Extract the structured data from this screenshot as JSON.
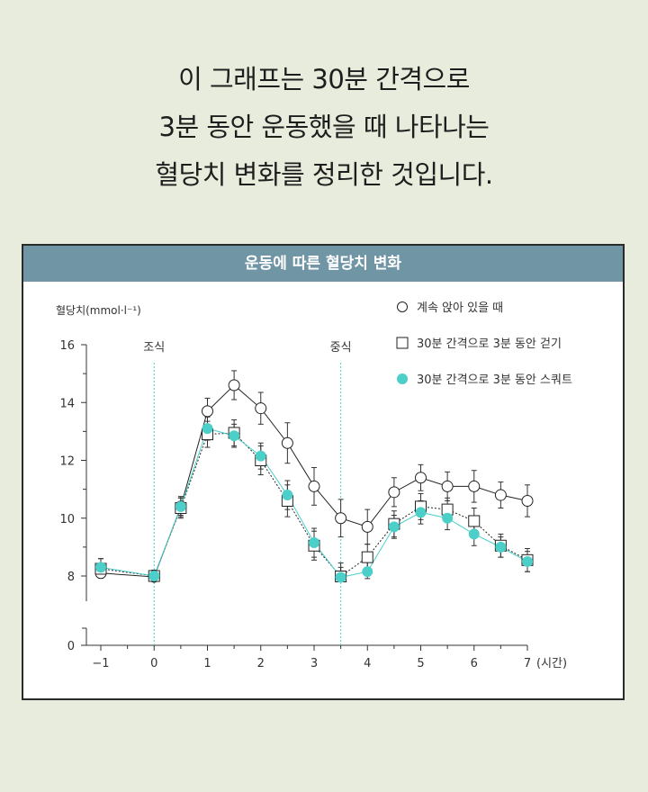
{
  "headline": {
    "line1": "이 그래프는 30분 간격으로",
    "line2": "3분 동안 운동했을 때 나타나는",
    "line3": "혈당치 변화를 정리한 것입니다."
  },
  "card": {
    "title": "운동에 따른 혈당치 변화"
  },
  "chart_data": {
    "type": "line",
    "title": "운동에 따른 혈당치 변화",
    "ylabel": "혈당치(mmol·l⁻¹)",
    "xlabel": "(시간)",
    "ylim": [
      0,
      16
    ],
    "xlim": [
      -1,
      7
    ],
    "y_ticks": [
      "0",
      "8",
      "10",
      "12",
      "14",
      "16"
    ],
    "x_ticks": [
      "−1",
      "0",
      "1",
      "2",
      "3",
      "4",
      "5",
      "6",
      "7"
    ],
    "axis_break": true,
    "annotations": [
      {
        "label": "조식",
        "x": 0
      },
      {
        "label": "중식",
        "x": 3.5
      }
    ],
    "x": [
      -1,
      0,
      0.5,
      1,
      1.5,
      2,
      2.5,
      3,
      3.5,
      4,
      4.5,
      5,
      5.5,
      6,
      6.5,
      7
    ],
    "series": [
      {
        "name": "계속 앉아 있을 때",
        "marker": "circle-open",
        "color": "#222222",
        "line": "solid",
        "values": [
          8.1,
          7.9,
          10.4,
          13.7,
          14.6,
          13.8,
          12.6,
          11.1,
          10.0,
          9.7,
          10.9,
          11.4,
          11.1,
          11.1,
          10.8,
          10.6
        ],
        "errors": [
          0.35,
          0.2,
          0.35,
          0.45,
          0.5,
          0.55,
          0.7,
          0.65,
          0.65,
          0.6,
          0.5,
          0.45,
          0.5,
          0.55,
          0.45,
          0.55
        ]
      },
      {
        "name": "30분 간격으로 3분 동안 걷기",
        "marker": "square-open",
        "color": "#222222",
        "line": "dotted",
        "values": [
          8.25,
          8.0,
          10.35,
          12.9,
          12.95,
          12.0,
          10.6,
          9.05,
          7.95,
          8.65,
          9.8,
          10.4,
          10.3,
          9.9,
          9.05,
          8.55
        ],
        "errors": [
          0.35,
          0.2,
          0.35,
          0.45,
          0.45,
          0.5,
          0.55,
          0.5,
          0.5,
          0.45,
          0.45,
          0.45,
          0.4,
          0.45,
          0.4,
          0.4
        ]
      },
      {
        "name": "30분 간격으로 3분 동안 스쿼트",
        "marker": "circle-filled",
        "color": "#4dcfc9",
        "line": "solid",
        "values": [
          8.3,
          8.0,
          10.4,
          13.1,
          12.85,
          12.15,
          10.8,
          9.15,
          7.85,
          8.15,
          9.7,
          10.2,
          10.0,
          9.45,
          9.0,
          8.5
        ],
        "errors": [
          0.3,
          0.2,
          0.3,
          0.4,
          0.4,
          0.45,
          0.5,
          0.5,
          0.45,
          0.45,
          0.4,
          0.4,
          0.4,
          0.4,
          0.35,
          0.35
        ]
      }
    ]
  }
}
